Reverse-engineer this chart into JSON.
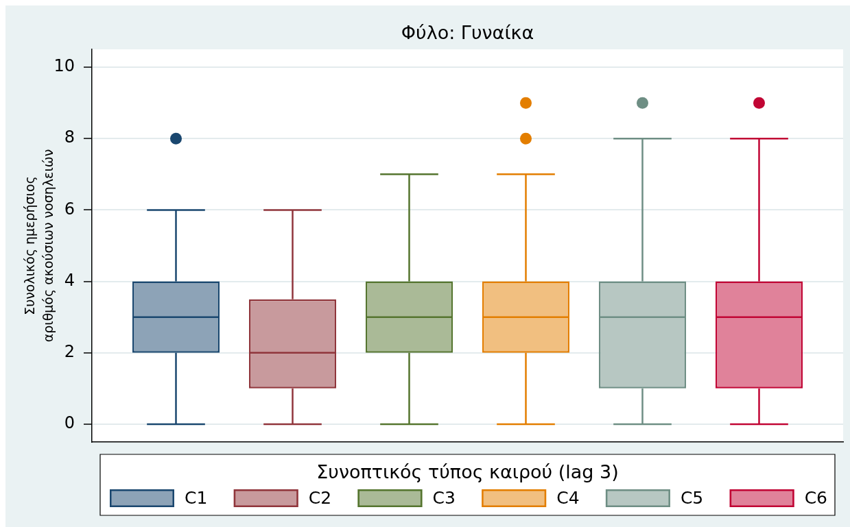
{
  "chart_data": {
    "type": "box",
    "title": "Φύλο: Γυναίκα",
    "ylabel": "Συνολικός ημερήσιος\nαριθμός ακούσιων νοσηλειών",
    "legend_title": "Συνοπτικός τύπος καιρού (lag 3)",
    "categories": [
      null
    ],
    "series": [
      {
        "name": "C1",
        "color": "#1a476f",
        "boxes": [
          {
            "low": 0,
            "q1": 2,
            "median": 3,
            "q3": 4,
            "high": 6,
            "outliers": [
              8
            ]
          }
        ]
      },
      {
        "name": "C2",
        "color": "#90353b",
        "boxes": [
          {
            "low": 0,
            "q1": 1,
            "median": 2,
            "q3": 3.5,
            "high": 6
          }
        ]
      },
      {
        "name": "C3",
        "color": "#55752f",
        "boxes": [
          {
            "low": 0,
            "q1": 2,
            "median": 3,
            "q3": 4,
            "high": 7
          }
        ]
      },
      {
        "name": "C4",
        "color": "#e37e00",
        "boxes": [
          {
            "low": 0,
            "q1": 2,
            "median": 3,
            "q3": 4,
            "high": 7,
            "outliers": [
              8,
              9
            ]
          }
        ]
      },
      {
        "name": "C5",
        "color": "#6e8e84",
        "boxes": [
          {
            "low": 0,
            "q1": 1,
            "median": 3,
            "q3": 4,
            "high": 8,
            "outliers": [
              9
            ]
          }
        ]
      },
      {
        "name": "C6",
        "color": "#c10534",
        "boxes": [
          {
            "low": 0,
            "q1": 1,
            "median": 3,
            "q3": 4,
            "high": 8,
            "outliers": [
              9
            ]
          }
        ]
      }
    ],
    "ylim": [
      -0.5,
      10.5
    ],
    "yticks": [
      0,
      2,
      4,
      6,
      8,
      10
    ],
    "grid": "y",
    "legend": "bottom",
    "tick_labels": "y",
    "marker": "circle"
  }
}
